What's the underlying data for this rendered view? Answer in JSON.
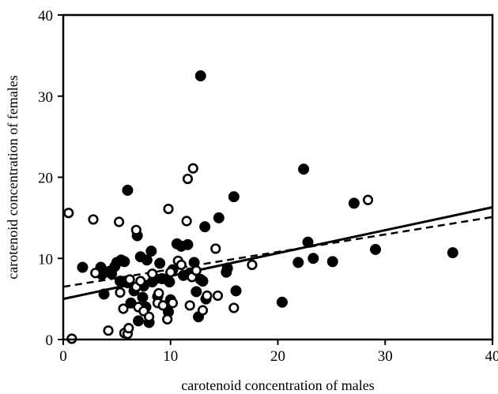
{
  "chart_data": {
    "type": "scatter",
    "xlabel": "carotenoid concentration of males",
    "ylabel": "carotenoid concentration of females",
    "xlim": [
      0,
      40
    ],
    "ylim": [
      0,
      40
    ],
    "xticks": [
      "0",
      "10",
      "20",
      "30",
      "40"
    ],
    "yticks": [
      "0",
      "10",
      "20",
      "30",
      "40"
    ],
    "grid": false,
    "legend": "none",
    "series": [
      {
        "marker": "filled-circle",
        "color": "#000000",
        "points": [
          [
            1.8,
            8.9
          ],
          [
            3.5,
            8.9
          ],
          [
            3.6,
            8.0
          ],
          [
            3.8,
            5.6
          ],
          [
            4.3,
            8.4
          ],
          [
            4.5,
            8.1
          ],
          [
            4.8,
            9.0
          ],
          [
            5.0,
            9.5
          ],
          [
            5.4,
            9.8
          ],
          [
            5.7,
            9.6
          ],
          [
            5.3,
            7.2
          ],
          [
            6.0,
            18.4
          ],
          [
            6.0,
            7.0
          ],
          [
            6.3,
            4.5
          ],
          [
            6.6,
            6.0
          ],
          [
            6.9,
            12.8
          ],
          [
            7.0,
            2.3
          ],
          [
            7.2,
            10.2
          ],
          [
            7.4,
            5.2
          ],
          [
            7.5,
            6.6
          ],
          [
            7.7,
            4.0
          ],
          [
            7.8,
            9.8
          ],
          [
            8.0,
            2.1
          ],
          [
            8.2,
            10.9
          ],
          [
            8.3,
            7.1
          ],
          [
            8.6,
            7.5
          ],
          [
            8.8,
            5.3
          ],
          [
            9.0,
            9.4
          ],
          [
            9.2,
            7.5
          ],
          [
            9.7,
            7.5
          ],
          [
            9.8,
            3.4
          ],
          [
            9.9,
            7.1
          ],
          [
            10.0,
            4.9
          ],
          [
            10.2,
            8.6
          ],
          [
            10.6,
            11.8
          ],
          [
            11.0,
            11.5
          ],
          [
            11.2,
            7.9
          ],
          [
            11.6,
            11.7
          ],
          [
            11.8,
            8.2
          ],
          [
            12.2,
            9.5
          ],
          [
            12.4,
            5.9
          ],
          [
            12.6,
            2.8
          ],
          [
            12.8,
            7.4
          ],
          [
            12.8,
            32.5
          ],
          [
            13.0,
            7.2
          ],
          [
            13.2,
            13.9
          ],
          [
            13.3,
            5.0
          ],
          [
            14.5,
            15.0
          ],
          [
            15.2,
            8.3
          ],
          [
            15.3,
            8.8
          ],
          [
            15.9,
            17.6
          ],
          [
            16.1,
            6.0
          ],
          [
            20.4,
            4.6
          ],
          [
            21.9,
            9.5
          ],
          [
            22.4,
            21.0
          ],
          [
            22.8,
            12.0
          ],
          [
            23.3,
            10.0
          ],
          [
            25.1,
            9.6
          ],
          [
            27.1,
            16.8
          ],
          [
            29.1,
            11.1
          ],
          [
            36.3,
            10.7
          ]
        ]
      },
      {
        "marker": "open-circle",
        "color": "#000000",
        "points": [
          [
            0.5,
            15.6
          ],
          [
            0.8,
            0.1
          ],
          [
            2.8,
            14.8
          ],
          [
            3.0,
            8.2
          ],
          [
            4.2,
            1.1
          ],
          [
            5.2,
            14.5
          ],
          [
            5.3,
            5.8
          ],
          [
            5.6,
            3.8
          ],
          [
            5.7,
            0.8
          ],
          [
            6.0,
            0.7
          ],
          [
            6.1,
            1.4
          ],
          [
            6.2,
            7.4
          ],
          [
            6.8,
            13.5
          ],
          [
            6.8,
            6.5
          ],
          [
            7.0,
            4.0
          ],
          [
            7.2,
            7.2
          ],
          [
            7.5,
            3.5
          ],
          [
            8.0,
            2.8
          ],
          [
            8.3,
            8.1
          ],
          [
            8.8,
            4.5
          ],
          [
            8.9,
            5.7
          ],
          [
            9.3,
            4.2
          ],
          [
            9.7,
            2.5
          ],
          [
            9.8,
            16.1
          ],
          [
            10.0,
            8.3
          ],
          [
            10.2,
            4.5
          ],
          [
            10.7,
            9.7
          ],
          [
            11.0,
            9.2
          ],
          [
            11.5,
            14.6
          ],
          [
            11.6,
            19.8
          ],
          [
            11.8,
            4.2
          ],
          [
            12.0,
            7.7
          ],
          [
            12.1,
            21.1
          ],
          [
            12.4,
            8.5
          ],
          [
            13.0,
            3.6
          ],
          [
            13.4,
            5.4
          ],
          [
            14.2,
            11.2
          ],
          [
            14.4,
            5.4
          ],
          [
            15.9,
            3.9
          ],
          [
            17.6,
            9.2
          ],
          [
            28.4,
            17.2
          ]
        ]
      }
    ],
    "lines": [
      {
        "style": "solid",
        "from": [
          0,
          5.0
        ],
        "to": [
          40,
          16.3
        ]
      },
      {
        "style": "dashed",
        "from": [
          0,
          6.5
        ],
        "to": [
          40,
          15.1
        ]
      }
    ]
  }
}
